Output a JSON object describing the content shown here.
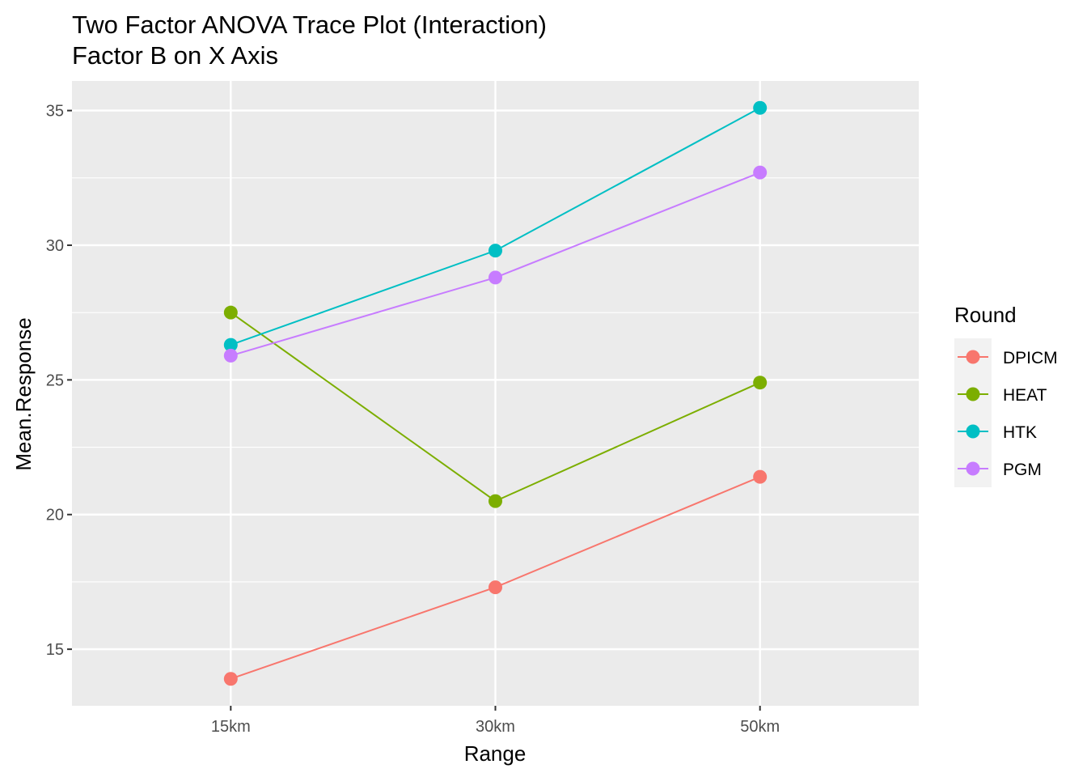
{
  "chart_data": {
    "type": "line",
    "title": "Two Factor ANOVA Trace Plot (Interaction)",
    "subtitle": "Factor B on X Axis",
    "xlabel": "Range",
    "ylabel": "Mean.Response",
    "categories": [
      "15km",
      "30km",
      "50km"
    ],
    "ylim": [
      12.9,
      36.1
    ],
    "yticks": [
      15,
      20,
      25,
      30,
      35
    ],
    "grid": true,
    "legend": {
      "title": "Round",
      "placement": "right"
    },
    "series": [
      {
        "name": "DPICM",
        "color": "#F8766D",
        "values": [
          13.9,
          17.3,
          21.4
        ]
      },
      {
        "name": "HEAT",
        "color": "#7CAE00",
        "values": [
          27.5,
          20.5,
          24.9
        ]
      },
      {
        "name": "HTK",
        "color": "#00BFC4",
        "values": [
          26.3,
          29.8,
          35.1
        ]
      },
      {
        "name": "PGM",
        "color": "#C77CFF",
        "values": [
          25.9,
          28.8,
          32.7
        ]
      }
    ]
  }
}
